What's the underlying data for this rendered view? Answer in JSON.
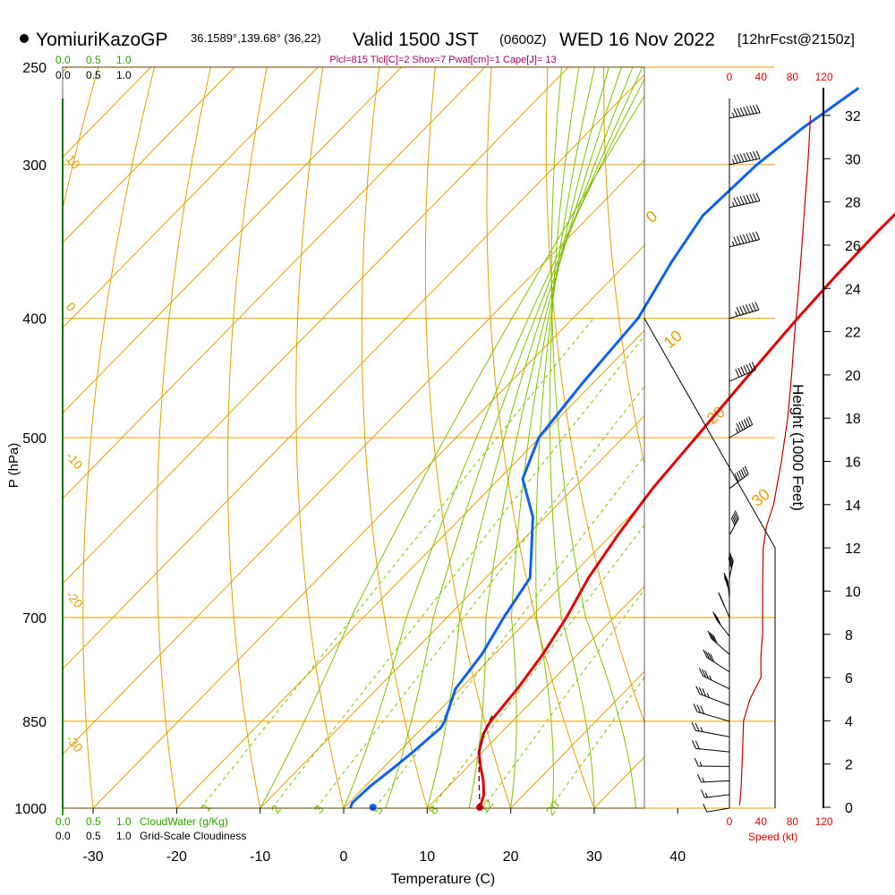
{
  "header": {
    "station": "YomiuriKazoGP",
    "location": "36.1589°,139.68° (36,22)",
    "valid": "Valid 1500 JST",
    "utc": "(0600Z)",
    "date": "WED 16 Nov 2022",
    "forecast": "[12hrFcst@2150z]"
  },
  "indices": "Plcl=815 Tlcl[C]=2 Shox=7 Pwat[cm]=1 Cape[J]= 13",
  "scales": {
    "cloud_water_ticks": [
      "0.0",
      "0.5",
      "1.0"
    ],
    "cloudiness_ticks": [
      "0.0",
      "0.5",
      "1.0"
    ],
    "cloud_water_label": "CloudWater (g/Kg)",
    "cloudiness_label": "Grid-Scale Cloudiness",
    "speed_ticks": [
      "0",
      "40",
      "80",
      "120"
    ],
    "speed_label": "Speed (kt)"
  },
  "colors": {
    "temperature": "#e00000",
    "dewpoint": "#1060f0",
    "isotherm": "#e0a000",
    "dry_adiabat": "#e0a000",
    "moist_adiabat": "#80c000",
    "mixing_ratio": "#80c000",
    "cloud_water": "#2aa000",
    "wind_speed": "#c00000"
  },
  "chart_data": {
    "type": "line",
    "title": "YomiuriKazoGP Valid 1500 JST (0600Z) WED 16 Nov 2022 [12hrFcst@2150z]",
    "xlabel": "Temperature (C)",
    "ylabel": "P (hPa)",
    "y2label": "Height (1000 Feet)",
    "xlim": [
      -30,
      40
    ],
    "x_ticks": [
      "-30",
      "-20",
      "-10",
      "0",
      "10",
      "20",
      "30",
      "40"
    ],
    "ylim": [
      1000,
      250
    ],
    "y_scale": "log",
    "y_ticks": [
      "1000",
      "850",
      "700",
      "500",
      "400",
      "300",
      "250"
    ],
    "height_ticks": [
      "0",
      "2",
      "4",
      "6",
      "8",
      "10",
      "12",
      "14",
      "16",
      "18",
      "20",
      "22",
      "24",
      "26",
      "28",
      "30",
      "32"
    ],
    "isotherm_labels": [
      {
        "label": "10",
        "position": "left-edge near 300 hPa"
      },
      {
        "label": "0",
        "position": "left-edge near 400 hPa"
      },
      {
        "label": "-10",
        "position": "left-edge near 530 hPa"
      },
      {
        "label": "-20",
        "position": "left-edge near 680 hPa"
      },
      {
        "label": "-30",
        "position": "left-edge near 880 hPa"
      }
    ],
    "potential_temp_labels": [
      "0",
      "10",
      "20",
      "30"
    ],
    "mixing_ratio_labels": [
      "1",
      "2",
      "3",
      "5",
      "8",
      "12",
      "20"
    ],
    "series": [
      {
        "name": "Temperature",
        "x": [
          16.3,
          15.2,
          13.5,
          11.5,
          9.6,
          8.0,
          7.4,
          6.8,
          5.8,
          4.3,
          2.3,
          0.8,
          -0.5,
          -1.3,
          -2.2,
          -3.1,
          -3.5,
          -3.7,
          -3.5,
          -3.3,
          -2.9
        ],
        "y": [
          1000,
          975,
          950,
          925,
          900,
          870,
          850,
          800,
          750,
          700,
          650,
          600,
          550,
          500,
          450,
          400,
          370,
          340,
          310,
          290,
          270
        ]
      },
      {
        "name": "Dewpoint",
        "x": [
          0.8,
          0.4,
          0.6,
          1.2,
          1.7,
          2.2,
          1.9,
          -0.6,
          -1.5,
          -3.2,
          -4.7,
          -7.5,
          -11.5,
          -17.2,
          -20.1,
          -21.3,
          -22.2,
          -24.8,
          -26.5,
          -26.0,
          -24.8,
          -22.8
        ],
        "y": [
          1000,
          990,
          960,
          930,
          900,
          860,
          850,
          800,
          750,
          700,
          650,
          620,
          580,
          540,
          500,
          450,
          400,
          360,
          330,
          300,
          280,
          260
        ]
      }
    ],
    "wind_speed_profile": {
      "name": "Wind Speed (kt)",
      "height_kft": [
        0.1,
        1,
        3,
        4,
        5,
        6,
        7,
        8,
        10,
        12,
        13,
        14,
        16,
        18,
        20,
        22,
        24,
        26,
        28,
        30,
        32
      ],
      "speed": [
        13,
        15,
        17,
        18,
        26,
        40,
        40,
        42,
        42,
        43,
        47,
        56,
        66,
        74,
        79,
        83,
        88,
        92,
        96,
        100,
        103
      ]
    },
    "wind_barbs": {
      "levels_hpa": [
        1000,
        975,
        950,
        925,
        900,
        875,
        850,
        825,
        800,
        775,
        750,
        725,
        700,
        675,
        650,
        600,
        550,
        500,
        450,
        400,
        350,
        325,
        300,
        275
      ],
      "direction_deg": [
        40,
        45,
        55,
        65,
        80,
        95,
        110,
        120,
        130,
        140,
        150,
        160,
        170,
        180,
        190,
        200,
        220,
        230,
        240,
        255,
        260,
        265,
        268,
        270
      ],
      "speed_kt": [
        13,
        15,
        17,
        18,
        22,
        26,
        30,
        35,
        38,
        40,
        40,
        42,
        43,
        45,
        47,
        52,
        60,
        66,
        72,
        78,
        85,
        90,
        95,
        100
      ]
    }
  }
}
